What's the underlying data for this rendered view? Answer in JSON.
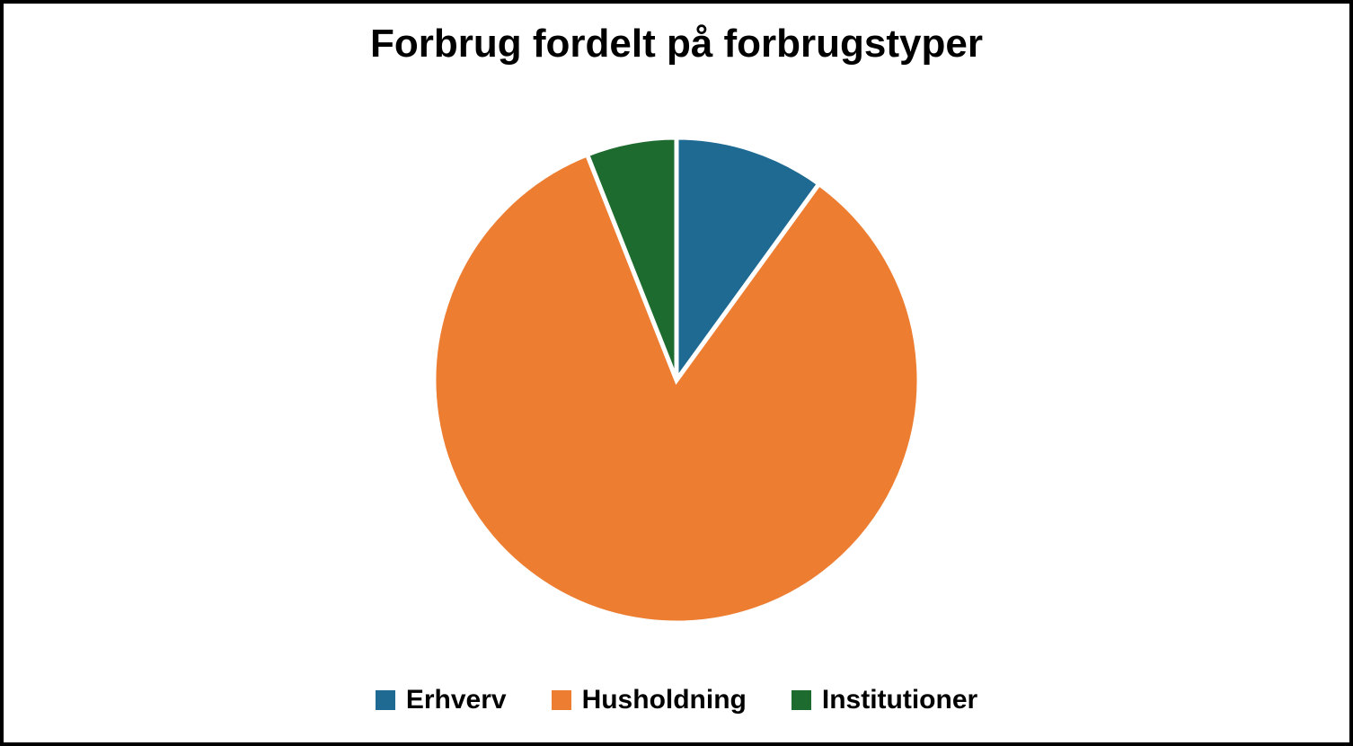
{
  "chart": {
    "type": "pie",
    "title": "Forbrug fordelt på forbrugstyper",
    "title_fontsize": 44,
    "title_color": "#000000",
    "background_color": "#ffffff",
    "border_color": "#000000",
    "border_width": 4,
    "pie_radius": 270,
    "slice_gap_color": "#ffffff",
    "slice_gap_width": 5,
    "slices": [
      {
        "label": "Erhverv",
        "value": 10,
        "color": "#1f6a92"
      },
      {
        "label": "Husholdning",
        "value": 84,
        "color": "#ed7d31"
      },
      {
        "label": "Institutioner",
        "value": 6,
        "color": "#1e6b2f"
      }
    ],
    "legend": {
      "position": "bottom",
      "fontsize": 30,
      "font_weight": "bold",
      "swatch_size": 22
    }
  }
}
